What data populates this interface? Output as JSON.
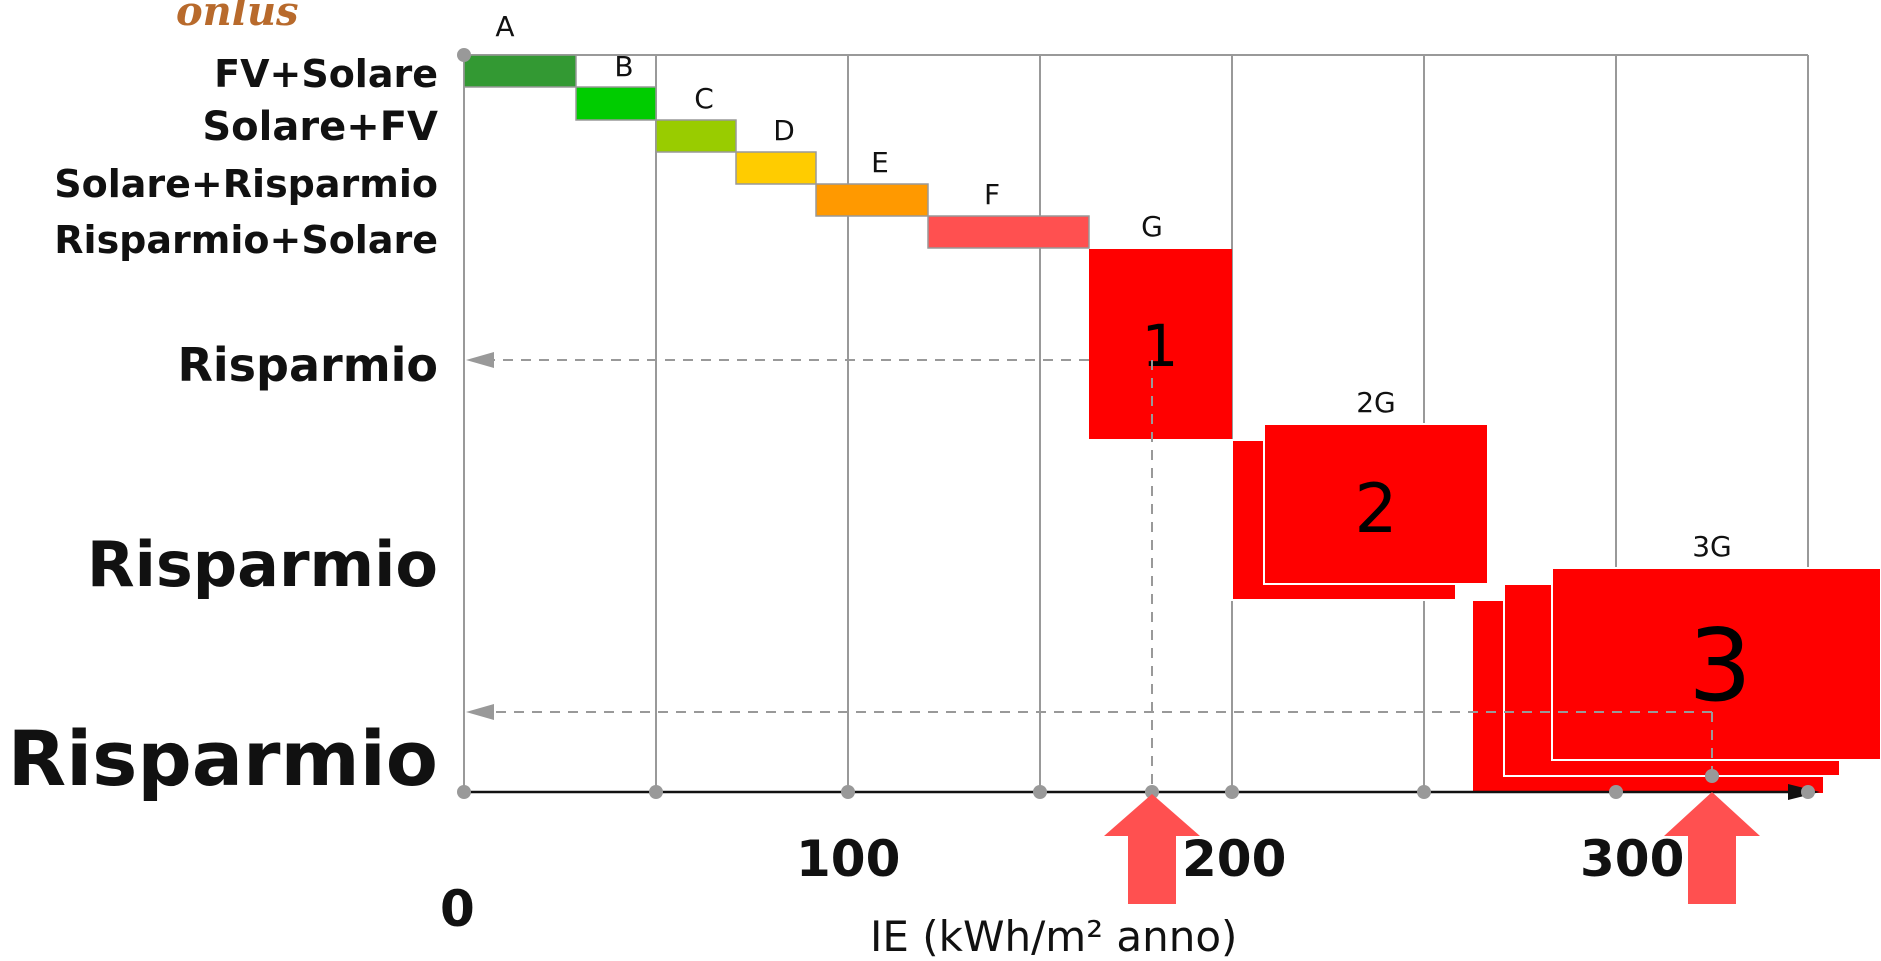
{
  "logo_text": "onlus",
  "row_labels": {
    "r1": "FV+Solare",
    "r2": "Solare+FV",
    "r3": "Solare+Risparmio",
    "r4": "Risparmio+Solare",
    "r5": "Risparmio",
    "r6": "Risparmio",
    "r7": "Risparmio"
  },
  "classes": [
    {
      "label": "A",
      "color": "#339933"
    },
    {
      "label": "B",
      "color": "#00cc00"
    },
    {
      "label": "C",
      "color": "#99cc00"
    },
    {
      "label": "D",
      "color": "#ffcc00"
    },
    {
      "label": "E",
      "color": "#ff9900"
    },
    {
      "label": "F",
      "color": "#ff5050"
    },
    {
      "label": "G",
      "color": "#ff0000"
    }
  ],
  "big_boxes": {
    "g1": {
      "number": "1"
    },
    "g2": {
      "number": "2",
      "label": "2G"
    },
    "g3": {
      "number": "3",
      "label": "3G"
    }
  },
  "axis": {
    "zero": "0",
    "t100": "100",
    "t200": "200",
    "t300": "300",
    "xlabel": "IE (kWh/m² anno)"
  },
  "colors": {
    "grid": "#999999",
    "dashed": "#999999",
    "arrow": "#ff5050",
    "red": "#ff0000"
  }
}
